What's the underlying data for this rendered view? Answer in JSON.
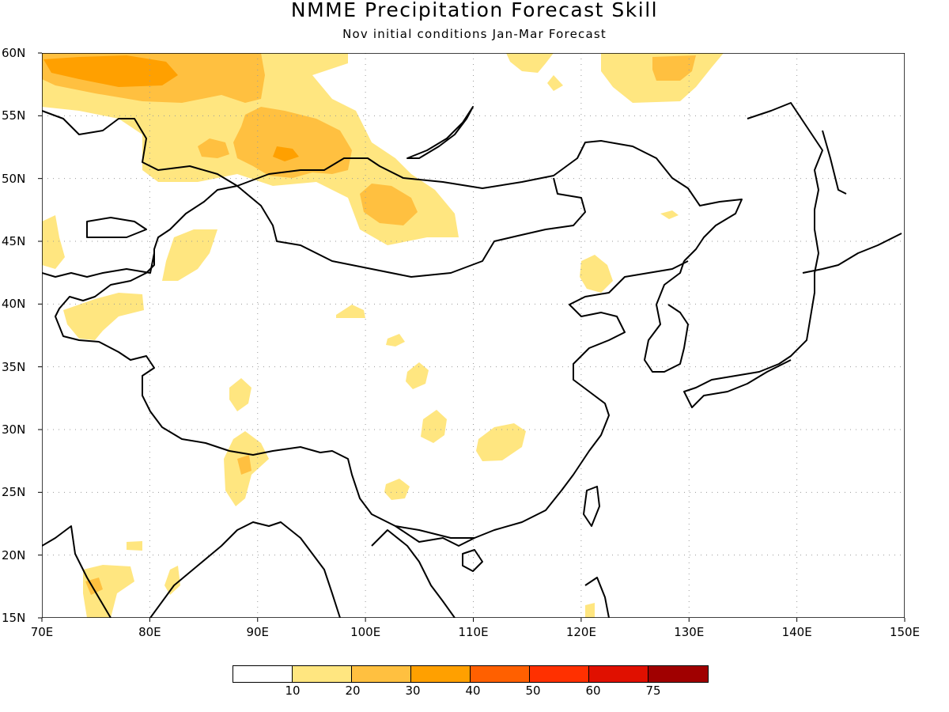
{
  "title": "NMME Precipitation Forecast Skill",
  "subtitle": "Nov initial conditions  Jan-Mar Forecast",
  "lat_labels": [
    "60N",
    "55N",
    "50N",
    "45N",
    "40N",
    "35N",
    "30N",
    "25N",
    "20N",
    "15N"
  ],
  "lon_labels": [
    "70E",
    "80E",
    "90E",
    "100E",
    "110E",
    "120E",
    "130E",
    "140E",
    "150E"
  ],
  "colorbar": {
    "colors": [
      "#ffffff",
      "#ffe680",
      "#ffc040",
      "#ffa000",
      "#ff6000",
      "#ff3000",
      "#e01000",
      "#a00000"
    ],
    "labels": [
      "10",
      "20",
      "30",
      "40",
      "50",
      "60",
      "75"
    ]
  },
  "colors": {
    "level1": "#ffe680",
    "level2": "#ffc040",
    "level3": "#ffa000",
    "coastline": "#000000",
    "grid": "#999999"
  }
}
